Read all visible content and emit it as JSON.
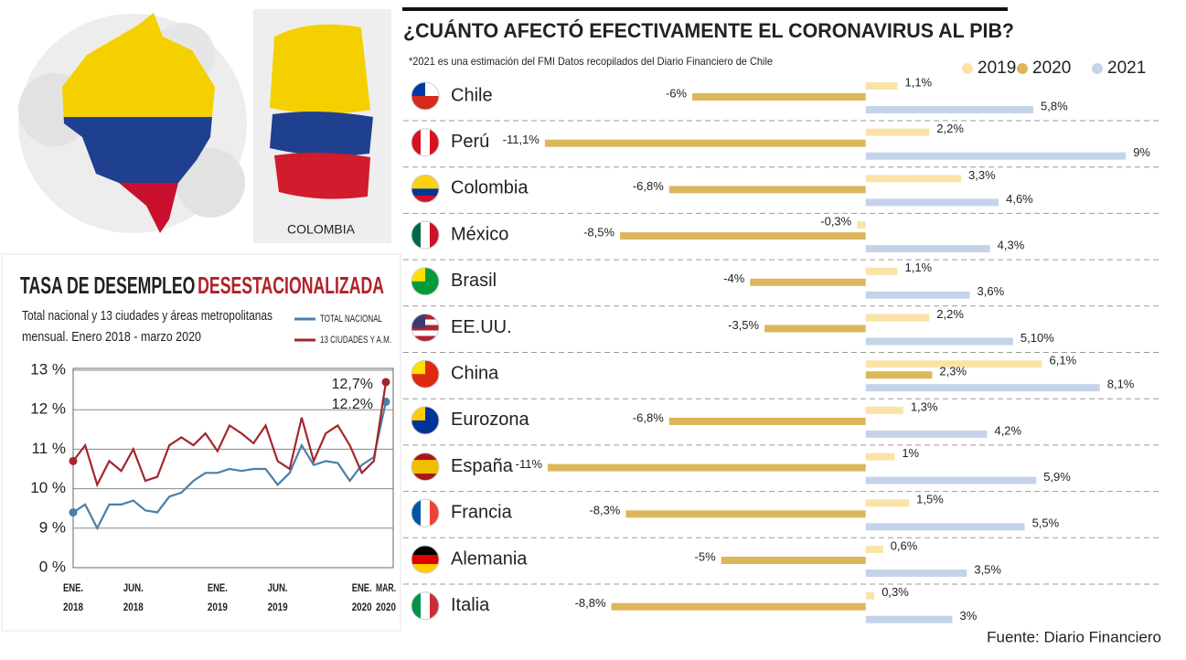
{
  "illustration": {
    "caption": "COLOMBIA"
  },
  "chart_data": [
    {
      "type": "line",
      "title": "TASA DE DESEMPLEO",
      "title_highlight": "DESESTACIONALIZADA",
      "subtitle": [
        "Total nacional y 13 ciudades y áreas metropolitanas",
        "mensual. Enero 2018 - marzo 2020"
      ],
      "categories": [
        [
          "ENE.",
          "2018"
        ],
        null,
        null,
        null,
        null,
        [
          "JUN.",
          "2018"
        ],
        null,
        null,
        null,
        null,
        null,
        null,
        [
          "ENE.",
          "2019"
        ],
        null,
        null,
        null,
        null,
        [
          "JUN.",
          "2019"
        ],
        null,
        null,
        null,
        null,
        null,
        null,
        [
          "ENE.",
          "2020"
        ],
        null,
        [
          "MAR.",
          "2020"
        ]
      ],
      "series": [
        {
          "name": "TOTAL NACIONAL",
          "color": "#4a7fa8",
          "values": [
            9.4,
            9.6,
            9.0,
            9.6,
            9.6,
            9.7,
            9.45,
            9.4,
            9.8,
            9.9,
            10.2,
            10.4,
            10.4,
            10.5,
            10.45,
            10.5,
            10.5,
            10.1,
            10.4,
            11.1,
            10.6,
            10.7,
            10.65,
            10.2,
            10.6,
            10.8,
            12.2
          ],
          "value_labels": [
            null,
            null,
            null,
            null,
            null,
            null,
            null,
            null,
            null,
            null,
            null,
            null,
            null,
            null,
            null,
            null,
            null,
            null,
            null,
            null,
            null,
            null,
            null,
            null,
            null,
            null,
            "12.2%"
          ]
        },
        {
          "name": "13 CIUDADES Y A.M.",
          "color": "#a3262a",
          "values": [
            10.7,
            11.1,
            10.1,
            10.7,
            10.45,
            11.0,
            10.2,
            10.3,
            11.1,
            11.3,
            11.1,
            11.4,
            10.95,
            11.6,
            11.4,
            11.15,
            11.6,
            10.7,
            10.5,
            11.8,
            10.7,
            11.4,
            11.6,
            11.1,
            10.4,
            10.7,
            12.7
          ],
          "value_labels": [
            null,
            null,
            null,
            null,
            null,
            null,
            null,
            null,
            null,
            null,
            null,
            null,
            null,
            null,
            null,
            null,
            null,
            null,
            null,
            null,
            null,
            null,
            null,
            null,
            null,
            null,
            "12,7%"
          ]
        }
      ],
      "ylim": [
        8,
        13
      ],
      "axis_break": [
        0,
        8
      ],
      "yticks": [
        {
          "value": 13,
          "label": "13 %"
        },
        {
          "value": 12,
          "label": "12 %"
        },
        {
          "value": 11,
          "label": "11 %"
        },
        {
          "value": 10,
          "label": "10 %"
        },
        {
          "value": 9,
          "label": "9 %"
        },
        {
          "value": 0,
          "label": "0 %"
        }
      ],
      "grid": true,
      "legend": "top-right"
    },
    {
      "type": "bar",
      "orientation": "horizontal",
      "title": "¿CUÁNTO AFECTÓ EFECTIVAMENTE EL CORONAVIRUS AL PIB?",
      "subtitle": "*2021 es una estimación del FMI Datos recopilados del Diario Financiero de Chile",
      "source": "Fuente:  Diario Financiero",
      "categories": [
        "Chile",
        "Perú",
        "Colombia",
        "México",
        "Brasil",
        "EE.UU.",
        "China",
        "Eurozona",
        "España",
        "Francia",
        "Alemania",
        "Italia"
      ],
      "series": [
        {
          "name": "2019",
          "color": "#fbe3a8",
          "values": [
            1.1,
            2.2,
            3.3,
            -0.3,
            1.1,
            2.2,
            6.1,
            1.3,
            1,
            1.5,
            0.6,
            0.3
          ],
          "value_labels": [
            "1,1%",
            "2,2%",
            "3,3%",
            "-0,3%",
            "1,1%",
            "2,2%",
            "6,1%",
            "1,3%",
            "1%",
            "1,5%",
            "0,6%",
            "0,3%"
          ]
        },
        {
          "name": "2020",
          "color": "#dcb65a",
          "values": [
            -6,
            -11.1,
            -6.8,
            -8.5,
            -4,
            -3.5,
            2.3,
            -6.8,
            -11,
            -8.3,
            -5,
            -8.8
          ],
          "value_labels": [
            "-6%",
            "-11,1%",
            "-6,8%",
            "-8,5%",
            "-4%",
            "-3,5%",
            "2,3%",
            "-6,8%",
            "-11%",
            "-8,3%",
            "-5%",
            "-8,8%"
          ]
        },
        {
          "name": "2021",
          "color": "#c5d3ea",
          "values": [
            5.8,
            9,
            4.6,
            4.3,
            3.6,
            5.1,
            8.1,
            4.2,
            5.9,
            5.5,
            3.5,
            3
          ],
          "value_labels": [
            "5,8%",
            "9%",
            "4,6%",
            "4,3%",
            "3,6%",
            "5,10%",
            "8,1%",
            "4,2%",
            "5,9%",
            "5,5%",
            "3,5%",
            "3%"
          ]
        }
      ],
      "xlim": [
        -16,
        9.5
      ],
      "legend": "top-right"
    }
  ]
}
